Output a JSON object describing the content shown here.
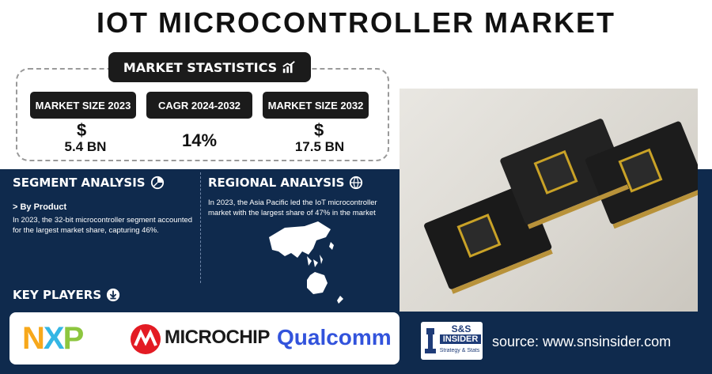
{
  "title": "IOT MICROCONTROLLER MARKET",
  "market_statistics": {
    "heading": "MARKET STASTISTICS",
    "icon": "chart-growth-icon",
    "metrics": [
      {
        "label": "MARKET SIZE 2023",
        "currency": "$",
        "value": "5.4 BN"
      },
      {
        "label": "CAGR 2024-2032",
        "currency": "",
        "value": "14%"
      },
      {
        "label": "MARKET SIZE 2032",
        "currency": "$",
        "value": "17.5 BN"
      }
    ]
  },
  "segment_analysis": {
    "heading": "SEGMENT ANALYSIS",
    "sub_heading": "> By Product",
    "text": "In 2023, the 32-bit microcontroller segment accounted for the largest market share, capturing 46%."
  },
  "regional_analysis": {
    "heading": "REGIONAL ANALYSIS",
    "text": "In 2023, the Asia Pacific led the IoT microcontroller market with the largest share of 47% in the market"
  },
  "key_players": {
    "heading": "KEY PLAYERS",
    "logos": [
      "NXP",
      "MICROCHIP",
      "Qualcomm"
    ]
  },
  "brand": {
    "logo_line1": "S&S",
    "logo_line2": "INSIDER",
    "logo_line3": "Strategy & Stats",
    "source": "source: www.snsinsider.com"
  },
  "colors": {
    "panel": "#0f2a4d",
    "nxp_orange": "#f7a81b",
    "nxp_cyan": "#34b6e4",
    "nxp_green": "#8dc63f",
    "microchip_red": "#e31b23",
    "qualcomm_blue": "#3253dc"
  }
}
